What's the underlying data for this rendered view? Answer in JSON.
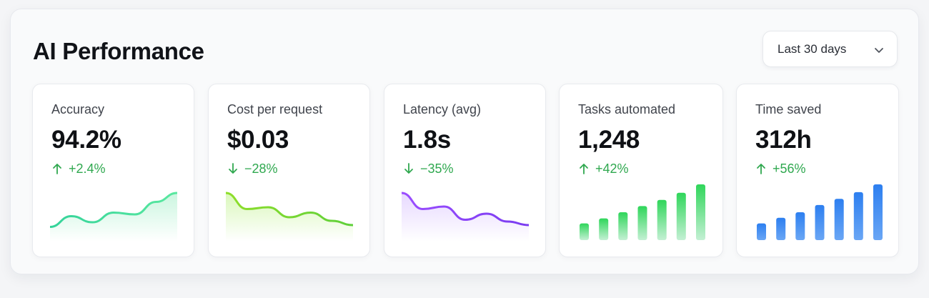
{
  "header": {
    "title": "AI Performance",
    "range_selector": {
      "selected": "Last 30 days",
      "icon": "chevron-down-icon"
    }
  },
  "cards": [
    {
      "label": "Accuracy",
      "value": "94.2%",
      "delta": "+2.4%",
      "direction": "up",
      "delta_color": "#2fa84f",
      "chart_type": "area",
      "trend": [
        0.05,
        0.35,
        0.18,
        0.45,
        0.4,
        0.75,
        1.0
      ],
      "color_start": "#34d39a",
      "color_end": "#5ae8a0",
      "fill": "#c8f5de"
    },
    {
      "label": "Cost per request",
      "value": "$0.03",
      "delta": "−28%",
      "direction": "down",
      "delta_color": "#2fa84f",
      "chart_type": "area",
      "trend": [
        1.0,
        0.55,
        0.6,
        0.32,
        0.45,
        0.22,
        0.1
      ],
      "color_start": "#8fde2a",
      "color_end": "#5fd03a",
      "fill": "#d8f7b8"
    },
    {
      "label": "Latency (avg)",
      "value": "1.8s",
      "delta": "−35%",
      "direction": "down",
      "delta_color": "#2fa84f",
      "chart_type": "area",
      "trend": [
        1.0,
        0.55,
        0.62,
        0.25,
        0.42,
        0.2,
        0.1
      ],
      "color_start": "#9b4dff",
      "color_end": "#7a3cf0",
      "fill": "#e6d7ff"
    },
    {
      "label": "Tasks automated",
      "value": "1,248",
      "delta": "+42%",
      "direction": "up",
      "delta_color": "#2fa84f",
      "chart_type": "bar",
      "bars": [
        0.3,
        0.39,
        0.5,
        0.61,
        0.72,
        0.85,
        1.0
      ],
      "color_start": "#c4f0d4",
      "color_end": "#2fd65a"
    },
    {
      "label": "Time saved",
      "value": "312h",
      "delta": "+56%",
      "direction": "up",
      "delta_color": "#2fa84f",
      "chart_type": "bar",
      "bars": [
        0.3,
        0.4,
        0.5,
        0.63,
        0.74,
        0.86,
        1.0
      ],
      "color_start": "#6aa6f5",
      "color_end": "#2d7ff0"
    }
  ]
}
